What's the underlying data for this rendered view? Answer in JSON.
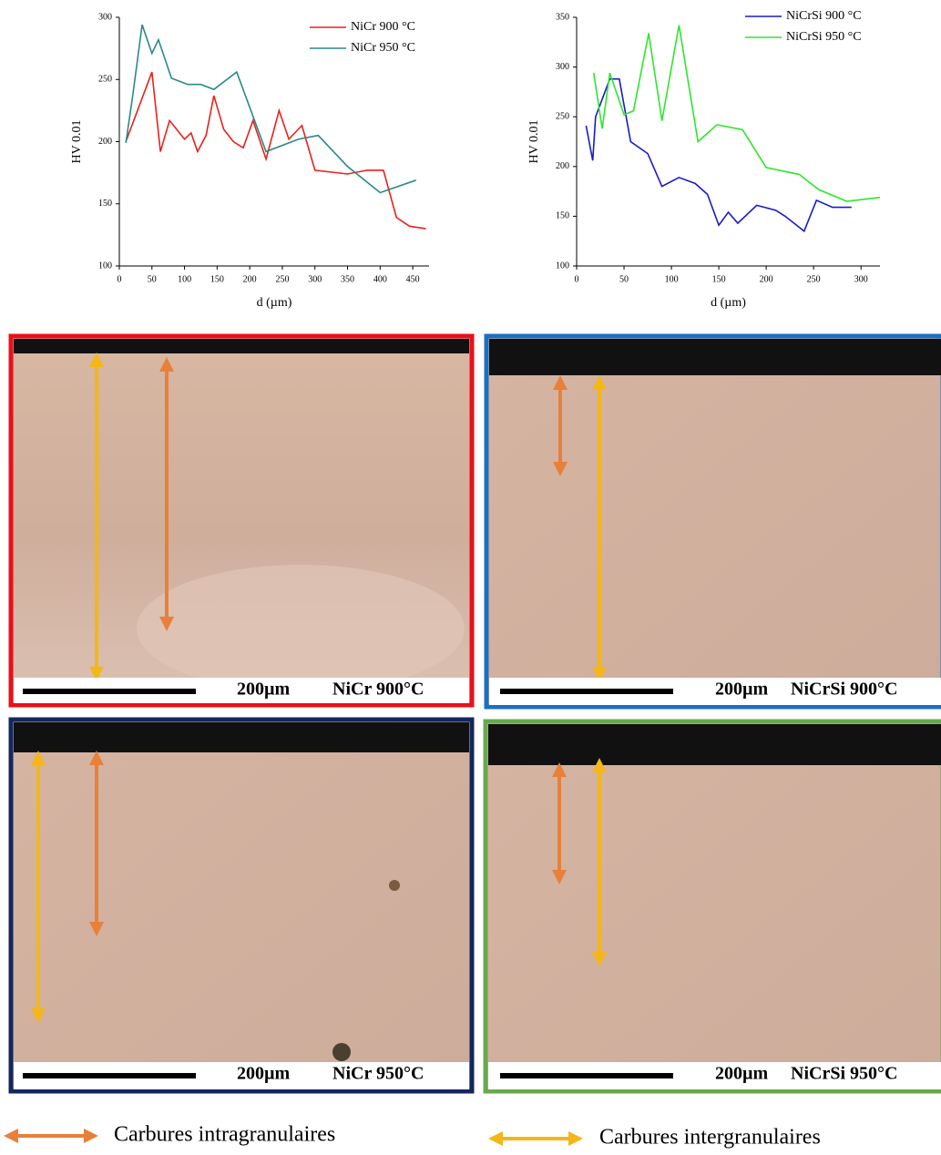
{
  "chart_data": [
    {
      "type": "line",
      "ylabel": "HV 0.01",
      "xlabel": "d (µm)",
      "xlim": [
        0,
        475
      ],
      "xticks": [
        0,
        50,
        100,
        150,
        200,
        250,
        300,
        350,
        400,
        450
      ],
      "ylim": [
        100,
        300
      ],
      "yticks": [
        100,
        150,
        200,
        250,
        300
      ],
      "series": [
        {
          "name": "NiCr 900 °C",
          "color": "#e8211c",
          "x": [
            10,
            50,
            63,
            77,
            100,
            110,
            120,
            133,
            145,
            160,
            175,
            190,
            205,
            225,
            245,
            260,
            280,
            300,
            350,
            380,
            405,
            425,
            445,
            470
          ],
          "values": [
            200,
            256,
            192,
            217,
            202,
            207,
            192,
            205,
            237,
            210,
            200,
            195,
            217,
            186,
            225,
            202,
            213,
            177,
            174,
            177,
            177,
            139,
            132,
            130
          ]
        },
        {
          "name": "NiCr 950 °C",
          "color": "#2a8a86",
          "x": [
            10,
            20,
            35,
            50,
            60,
            80,
            105,
            125,
            145,
            180,
            225,
            275,
            305,
            350,
            400,
            455
          ],
          "values": [
            199,
            235,
            294,
            271,
            282,
            251,
            246,
            246,
            242,
            256,
            192,
            202,
            205,
            180,
            159,
            169
          ]
        }
      ]
    },
    {
      "type": "line",
      "ylabel": "HV 0.01",
      "xlabel": "d (µm)",
      "xlim": [
        0,
        320
      ],
      "xticks": [
        0,
        50,
        100,
        150,
        200,
        250,
        300
      ],
      "ylim": [
        100,
        350
      ],
      "yticks": [
        100,
        150,
        200,
        250,
        300,
        350
      ],
      "series": [
        {
          "name": "NiCrSi 900 °C",
          "color": "#1a1ac8",
          "x": [
            10,
            17,
            20,
            35,
            45,
            57,
            75,
            90,
            108,
            125,
            138,
            150,
            160,
            170,
            190,
            210,
            220,
            240,
            253,
            270,
            290
          ],
          "values": [
            241,
            206,
            250,
            288,
            288,
            225,
            213,
            180,
            189,
            183,
            172,
            141,
            154,
            143,
            161,
            156,
            150,
            135,
            166,
            159,
            159
          ]
        },
        {
          "name": "NiCrSi 950 °C",
          "color": "#2ee62e",
          "x": [
            18,
            27,
            35,
            50,
            60,
            76,
            90,
            108,
            128,
            148,
            175,
            200,
            235,
            255,
            285,
            320
          ],
          "values": [
            294,
            238,
            294,
            252,
            256,
            334,
            246,
            342,
            225,
            242,
            237,
            199,
            192,
            177,
            165,
            169
          ]
        }
      ]
    }
  ],
  "panels": [
    {
      "scale": "200µm",
      "label": "NiCr 900°C"
    },
    {
      "scale": "200µm",
      "label": "NiCrSi 900°C"
    },
    {
      "scale": "200µm",
      "label": "NiCr 950°C"
    },
    {
      "scale": "200µm",
      "label": "NiCrSi 950°C"
    }
  ],
  "legend": {
    "items": [
      "Carbures intragranulaires",
      "Carbures intergranulaires"
    ]
  }
}
